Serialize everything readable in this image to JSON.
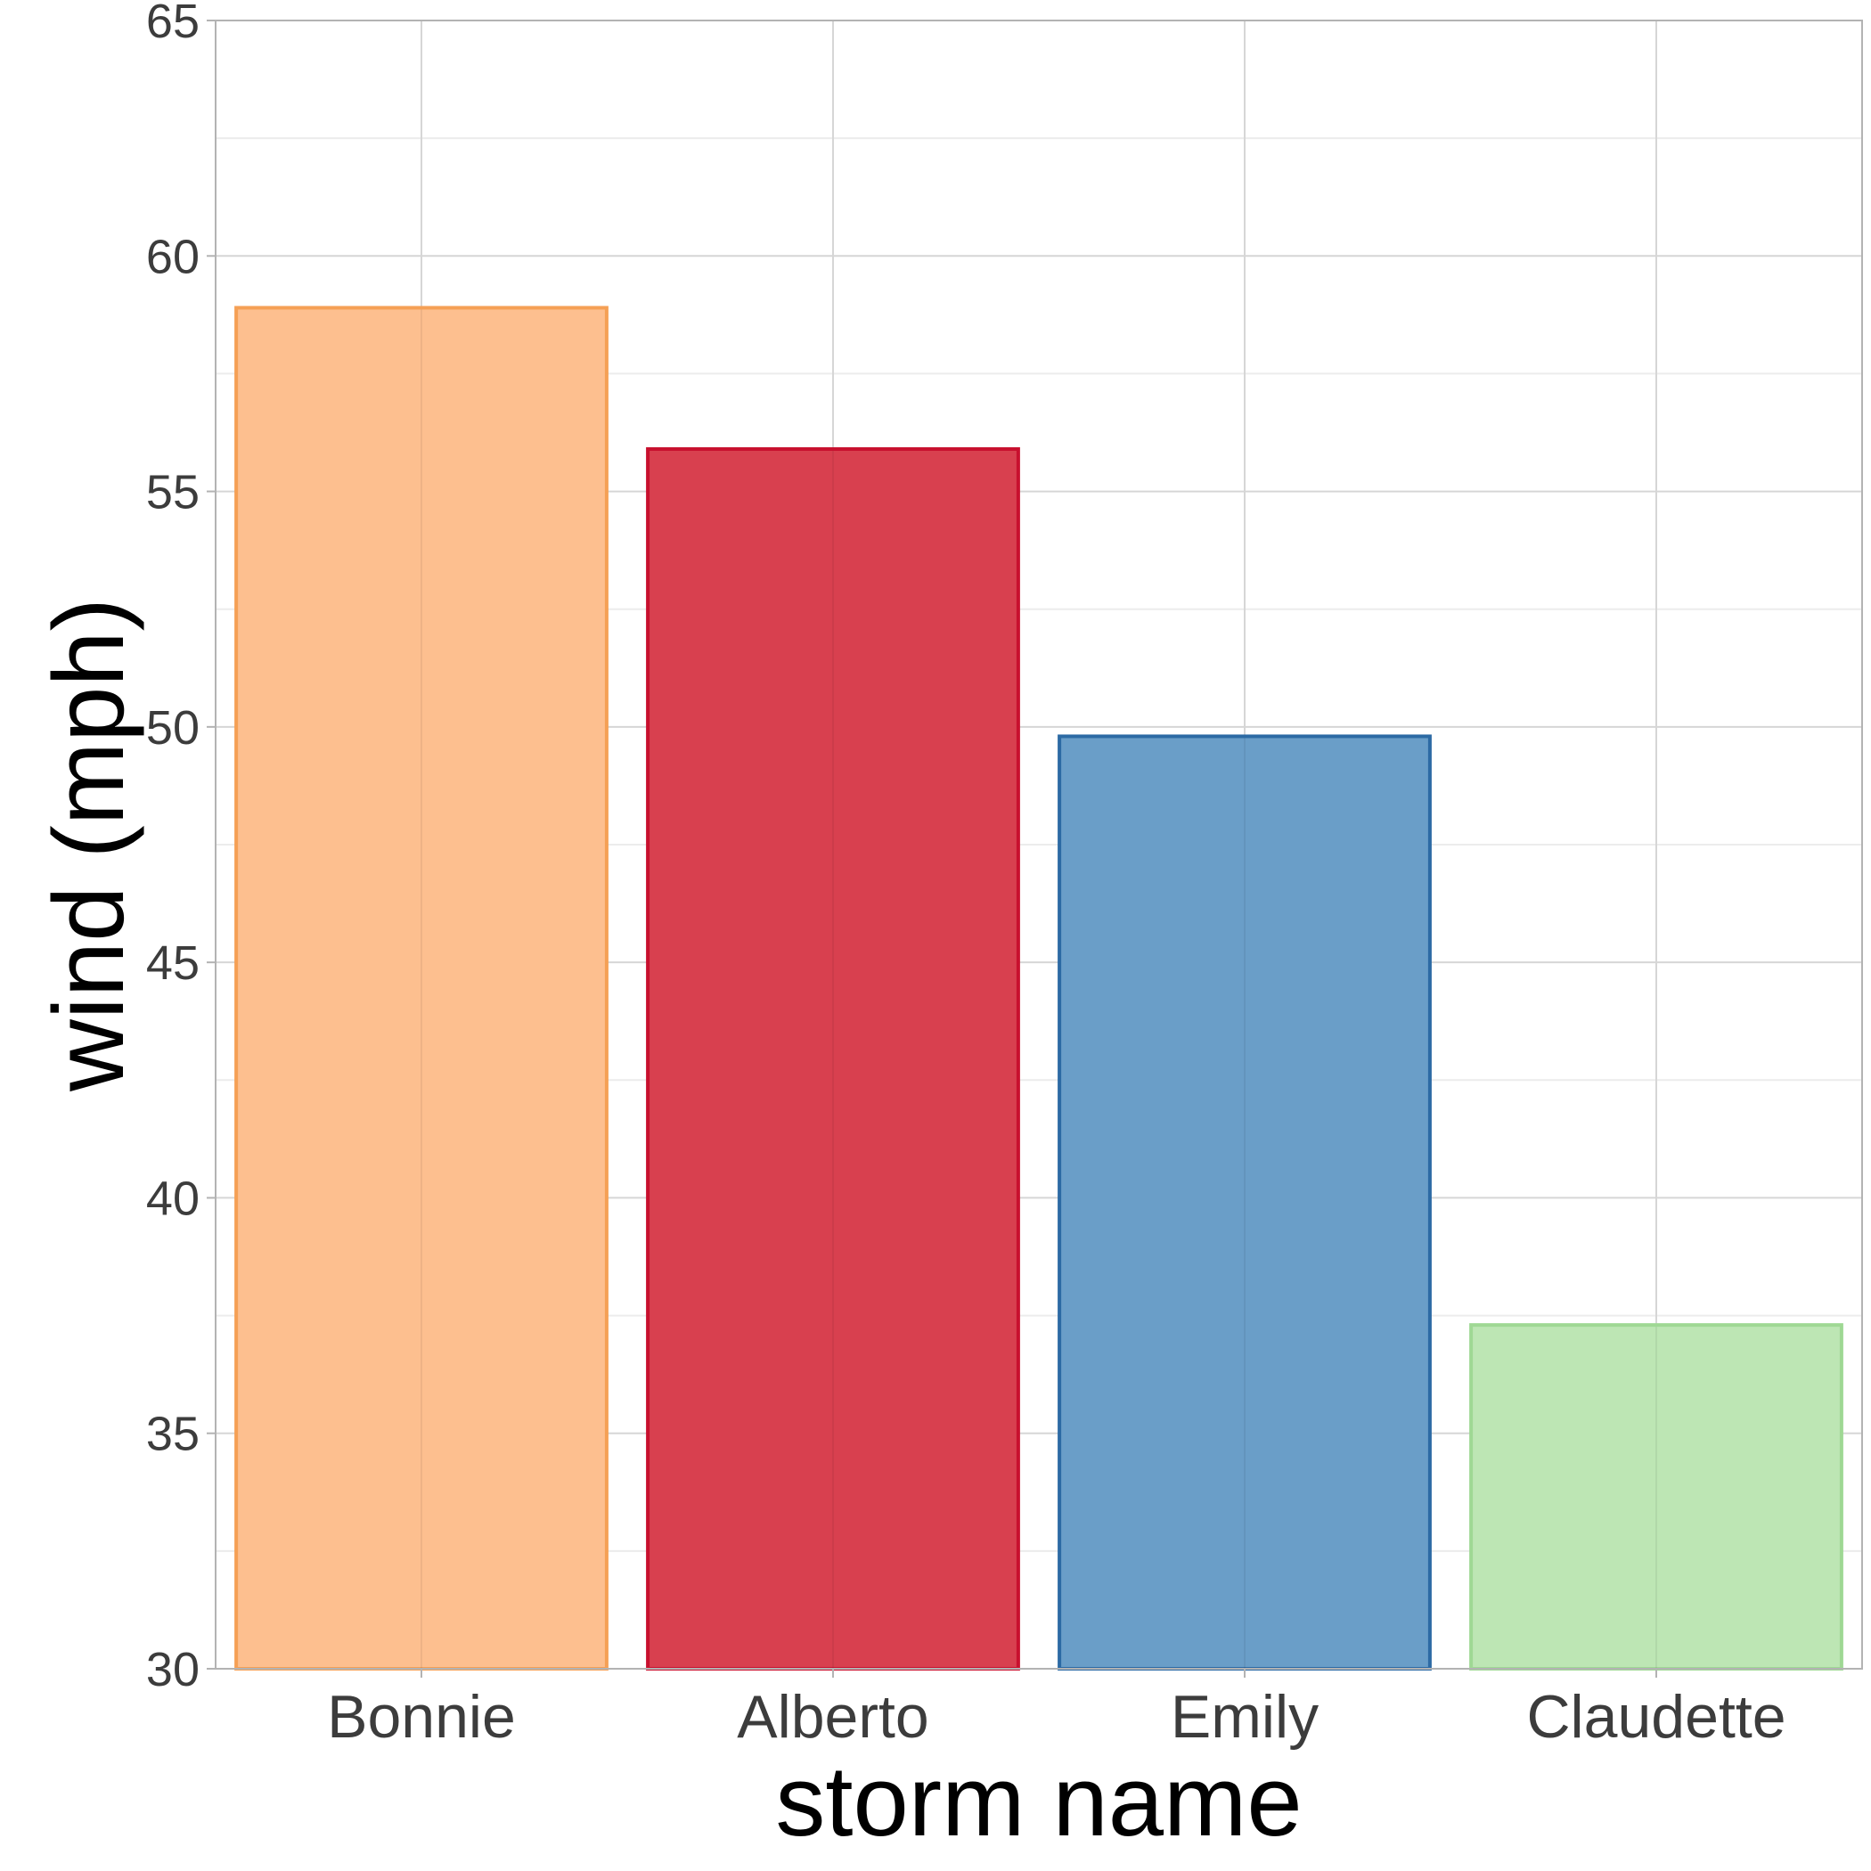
{
  "chart_data": {
    "type": "bar",
    "title": "",
    "xlabel": "storm name",
    "ylabel": "wind (mph)",
    "categories": [
      "Bonnie",
      "Alberto",
      "Emily",
      "Claudette"
    ],
    "values": [
      58.9,
      55.9,
      49.8,
      37.3
    ],
    "ylim": [
      30,
      65
    ],
    "yticks": [
      30,
      35,
      40,
      45,
      50,
      55,
      60,
      65
    ],
    "grid": true,
    "legend": "none",
    "colors": {
      "fills": [
        "#fdbf8f",
        "#d8404f",
        "#6a9ec8",
        "#bde6b4"
      ],
      "strokes": [
        "#f5a055",
        "#c8102e",
        "#2c6aa4",
        "#9fd894"
      ],
      "grid_major": "#d6d6d6",
      "grid_minor": "#ececec",
      "panel_border": "#b3b3b3",
      "tick_text": "#3c3c3c",
      "axis_title": "#000000"
    }
  }
}
